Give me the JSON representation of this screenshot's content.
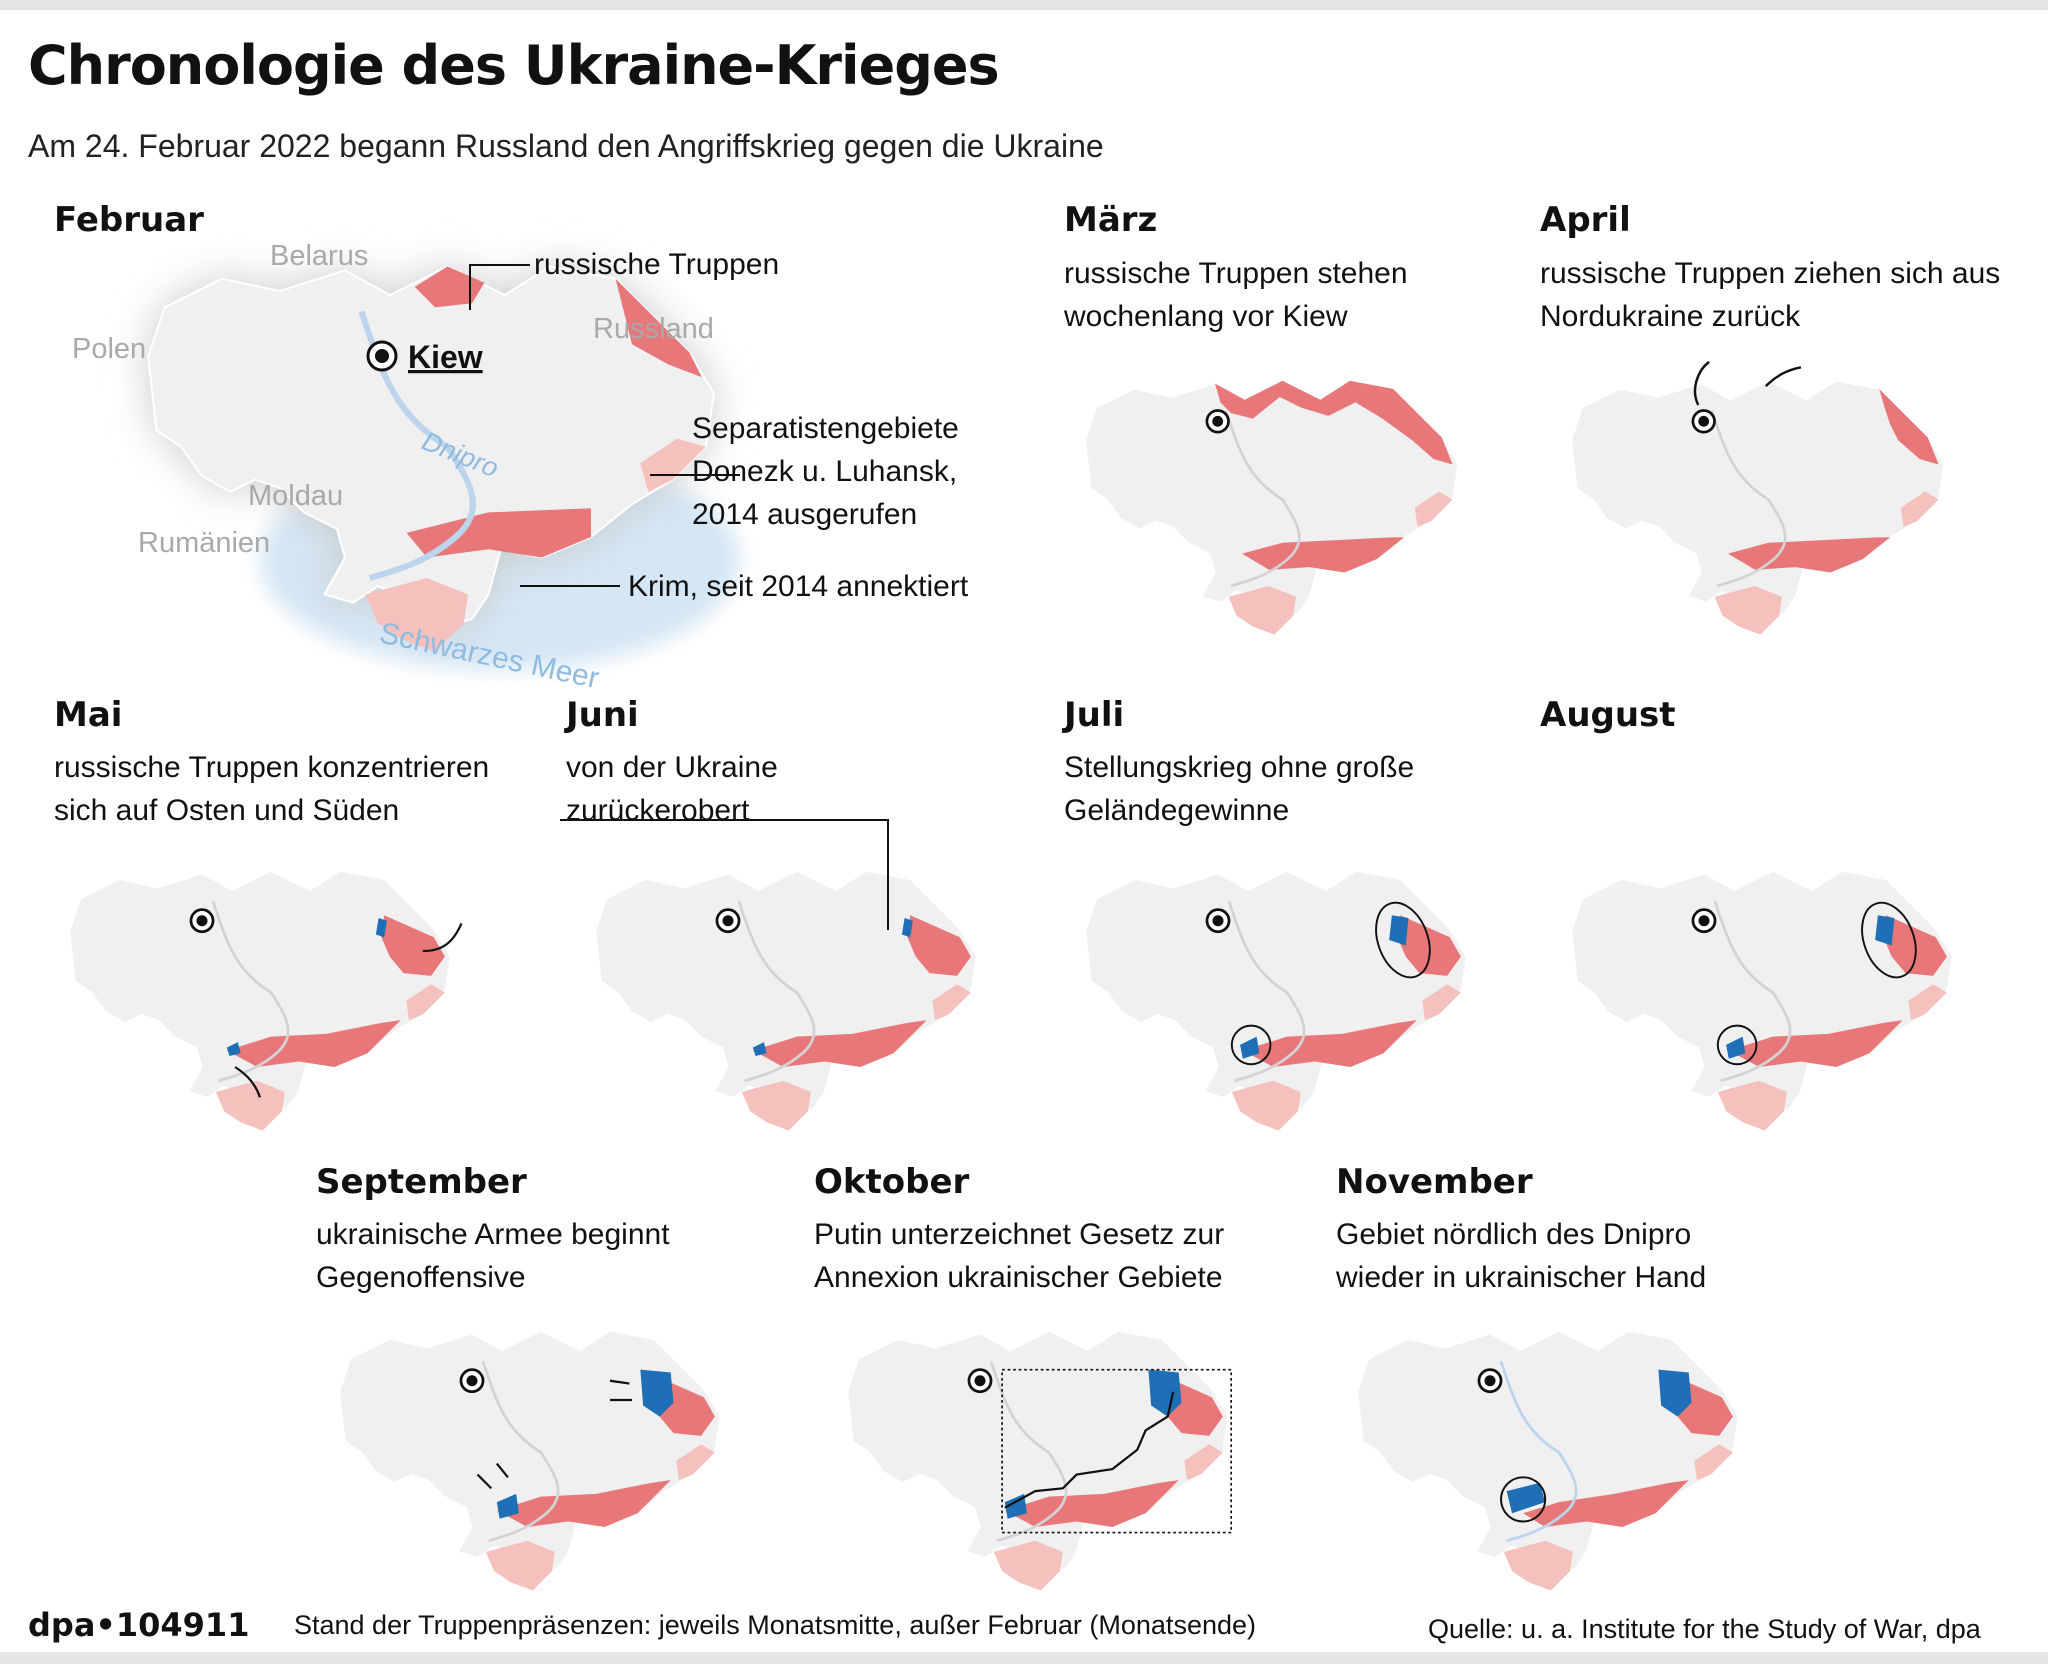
{
  "header": {
    "title": "Chronologie des Ukraine-Krieges",
    "subtitle": "Am 24. Februar 2022 begann Russland den Angriffskrieg gegen die Ukraine"
  },
  "colors": {
    "russian_troops": "#e8777a",
    "annexed": "#f5c1bd",
    "recaptured": "#1f6fb6",
    "land": "#f0f0f0",
    "river": "#bcd5ec",
    "sea": "#d5e6f4"
  },
  "feb_map": {
    "month": "Februar",
    "labels": {
      "belarus": "Belarus",
      "polen": "Polen",
      "russland": "Russland",
      "moldau": "Moldau",
      "rumaenien": "Rumänien",
      "kiew": "Kiew",
      "dnipro": "Dnipro",
      "sea": "Schwarzes Meer"
    },
    "annotations": {
      "troops": "russische Truppen",
      "separatists_line1": "Separatistengebiete",
      "separatists_line2": "Donezk u. Luhansk,",
      "separatists_line3": "2014 ausgerufen",
      "crimea": "Krim, seit 2014 annektiert"
    }
  },
  "months": [
    {
      "name": "März",
      "line1": "russische Truppen stehen",
      "line2": "wochenlang vor Kiew"
    },
    {
      "name": "April",
      "line1": "russische Truppen ziehen sich aus",
      "line2": "Nordukraine zurück"
    },
    {
      "name": "Mai",
      "line1": "russische Truppen konzentrieren",
      "line2": "sich auf Osten und Süden"
    },
    {
      "name": "Juni",
      "line1": "von der Ukraine",
      "line2": "zurückerobert"
    },
    {
      "name": "Juli",
      "line1": "Stellungskrieg ohne große",
      "line2": "Geländegewinne"
    },
    {
      "name": "August",
      "line1": "",
      "line2": ""
    },
    {
      "name": "September",
      "line1": "ukrainische Armee beginnt",
      "line2": "Gegenoffensive"
    },
    {
      "name": "Oktober",
      "line1": "Putin unterzeichnet Gesetz zur",
      "line2": "Annexion ukrainischer Gebiete"
    },
    {
      "name": "November",
      "line1": "Gebiet nördlich des Dnipro",
      "line2": "wieder in ukrainischer Hand"
    }
  ],
  "footer": {
    "logo": "dpa•104911",
    "note": "Stand der Truppenpräsenzen: jeweils Monatsmitte, außer Februar (Monatsende)",
    "source": "Quelle: u. a. Institute for the Study of War, dpa"
  }
}
